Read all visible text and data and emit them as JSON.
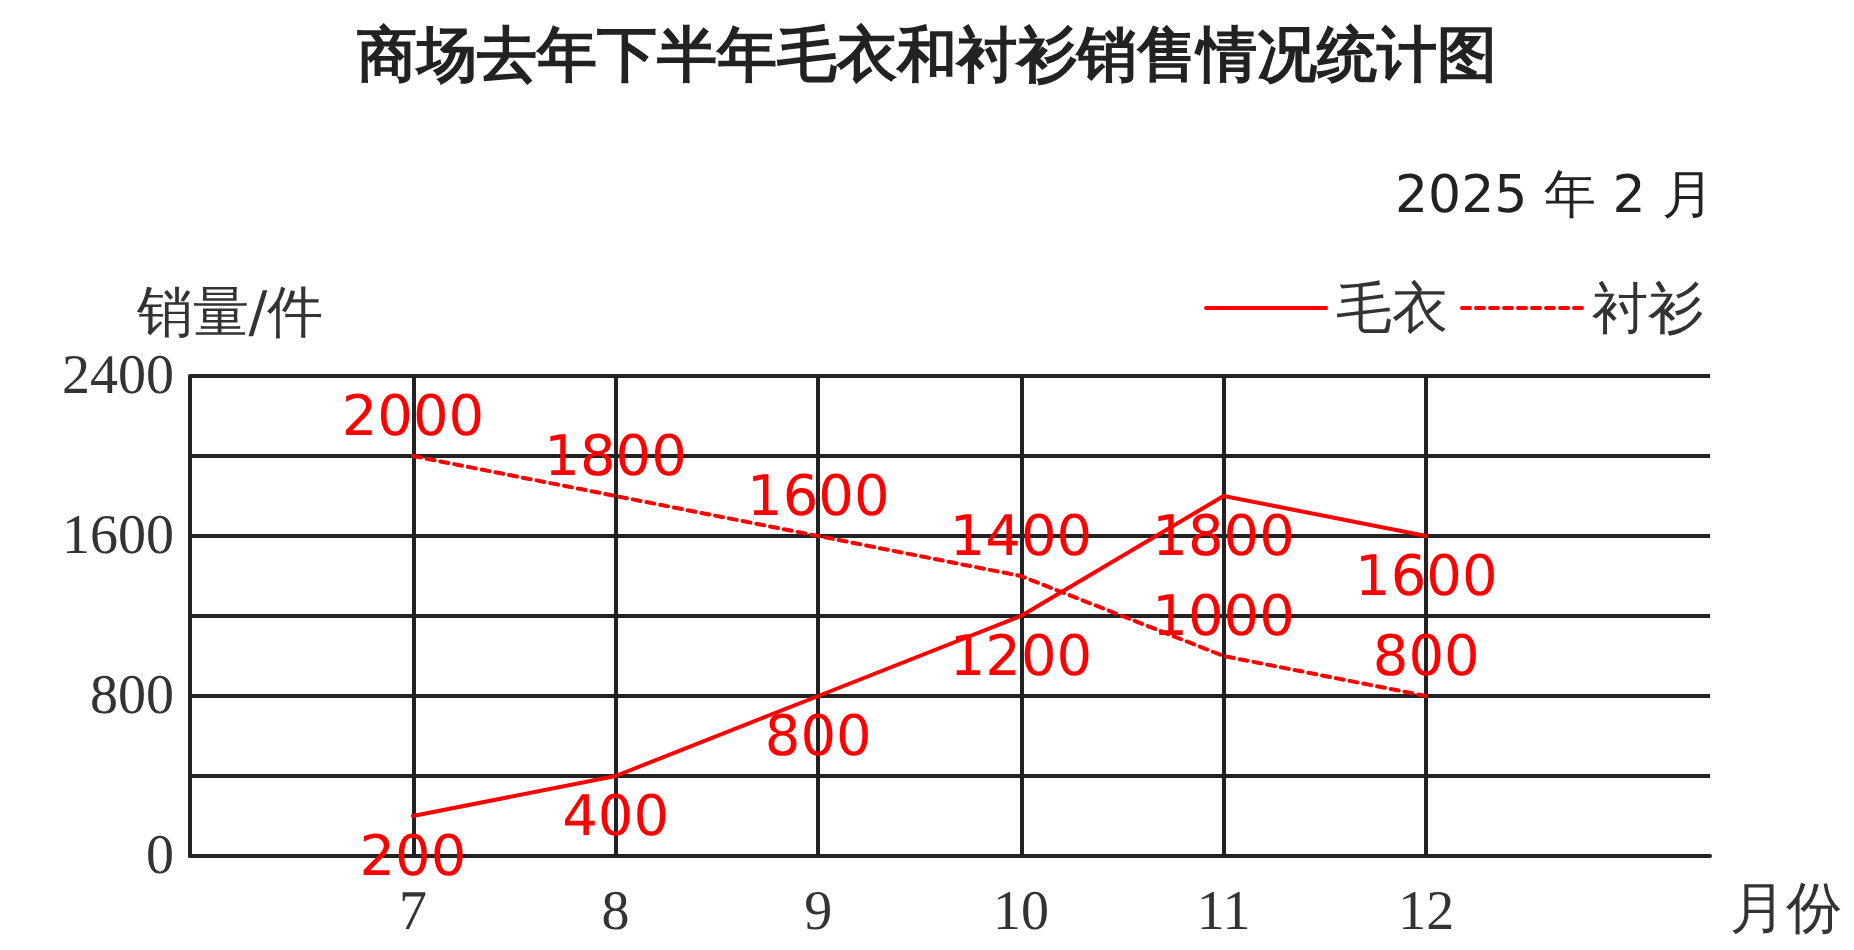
{
  "chart_data": {
    "type": "line",
    "title": "商场去年下半年毛衣和衬衫销售情况统计图",
    "annotations": [
      "2025 年 2 月"
    ],
    "xlabel": "月份",
    "ylabel": "销量/件",
    "x": [
      7,
      8,
      9,
      10,
      11,
      12
    ],
    "xlim": [
      5.9,
      13.4
    ],
    "xticks": [
      7,
      8,
      9,
      10,
      11,
      12
    ],
    "ylim": [
      0,
      2400
    ],
    "yticks": [
      0,
      {
        "value": 400,
        "label": null
      },
      800,
      {
        "value": 1200,
        "label": null
      },
      1600,
      {
        "value": 2000,
        "label": null
      },
      2400
    ],
    "series": [
      {
        "name": "毛衣",
        "color": "#ff0000",
        "line_style": "solid",
        "values": [
          200,
          400,
          800,
          1200,
          1800,
          1600
        ]
      },
      {
        "name": "衬衫",
        "color": "#ff0000",
        "line_style": "dashed",
        "values": [
          2000,
          1800,
          1600,
          1400,
          1000,
          800
        ]
      }
    ],
    "grid": true,
    "legend": "top right",
    "marker": "none",
    "data_labels": true
  }
}
